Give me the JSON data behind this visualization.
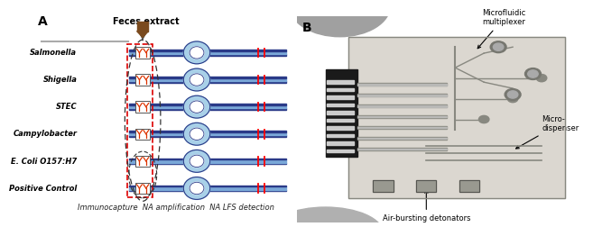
{
  "panel_a_label": "A",
  "panel_b_label": "B",
  "title_a": "Feces extract",
  "caption": "Immunocapture  NA amplification  NA LFS detection",
  "pathogens": [
    "Salmonella",
    "Shigella",
    "STEC",
    "Campylobacter",
    "E. Coli O157:H7",
    "Positive Control"
  ],
  "annotations_b": [
    "Microfluidic\nmultiplexer",
    "Micro-\ndispenser",
    "Air-bursting detonators"
  ],
  "bg_color": "#ffffff",
  "strip_blue_light": "#7aa8d8",
  "strip_blue_dark": "#2a3a88",
  "circle_outer": "#a8d0e8",
  "circle_inner": "#d8eef8",
  "antibody_color": "#dd3300",
  "brown_color": "#7a4a1e",
  "gray_line": "#aaaaaa",
  "red_dash": "#dd0000",
  "black_dash": "#333333"
}
